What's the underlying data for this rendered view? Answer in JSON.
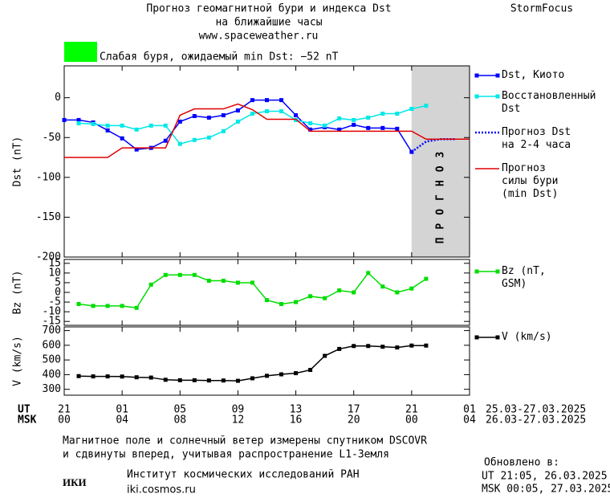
{
  "header": {
    "title_lines": [
      "Прогноз геомагнитной бури и индекса Dst",
      "на ближайшие часы"
    ],
    "url": "www.spaceweather.ru",
    "brand": "StormFocus"
  },
  "status": {
    "color": "#00ff00",
    "text": "Слабая буря, ожидаемый min Dst: −52 nT"
  },
  "shared_x": {
    "xlim": [
      0,
      28
    ],
    "xticks": [
      {
        "value": 0,
        "label": "21"
      },
      {
        "value": 4,
        "label": "01"
      },
      {
        "value": 8,
        "label": "05"
      },
      {
        "value": 12,
        "label": "09"
      },
      {
        "value": 16,
        "label": "13"
      },
      {
        "value": 20,
        "label": "17"
      },
      {
        "value": 24,
        "label": "21"
      },
      {
        "value": 28,
        "label": "01"
      }
    ],
    "msk_ticks": [
      {
        "value": 0,
        "label": "00"
      },
      {
        "value": 4,
        "label": "04"
      },
      {
        "value": 8,
        "label": "08"
      },
      {
        "value": 12,
        "label": "12"
      },
      {
        "value": 16,
        "label": "16"
      },
      {
        "value": 20,
        "label": "20"
      },
      {
        "value": 24,
        "label": "00"
      },
      {
        "value": 28,
        "label": "04"
      }
    ],
    "ut_label": "UT",
    "msk_label": "MSK",
    "ut_dates": "25.03-27.03.2025",
    "msk_dates": "26.03-27.03.2025"
  },
  "chart_data": [
    {
      "type": "line",
      "y_label": "Dst (nT)",
      "ylim": [
        -200,
        40
      ],
      "yticks": [
        0,
        -50,
        -100,
        -150,
        -200
      ],
      "forecast_region": [
        24,
        28
      ],
      "forecast_label": "ПРОГНОЗ",
      "series": [
        {
          "name": "Dst, Киото",
          "color": "#0000ff",
          "marker": "square",
          "style": "solid",
          "x": [
            0,
            1,
            2,
            3,
            4,
            5,
            6,
            7,
            8,
            9,
            10,
            11,
            12,
            13,
            14,
            15,
            16,
            17,
            18,
            19,
            20,
            21,
            22,
            23,
            24
          ],
          "values": [
            -28,
            -28,
            -31,
            -41,
            -51,
            -65,
            -63,
            -54,
            -30,
            -23,
            -25,
            -22,
            -16,
            -3,
            -3,
            -3,
            -22,
            -40,
            -37,
            -40,
            -34,
            -38,
            -38,
            -39,
            -68
          ]
        },
        {
          "name": "Восстановленный Dst",
          "color": "#00e8e8",
          "marker": "square",
          "style": "solid",
          "x": [
            1,
            2,
            3,
            4,
            5,
            6,
            7,
            8,
            9,
            10,
            11,
            12,
            13,
            14,
            15,
            16,
            17,
            18,
            19,
            20,
            21,
            22,
            23,
            24,
            25
          ],
          "values": [
            -32,
            -33,
            -35,
            -35,
            -40,
            -35,
            -35,
            -58,
            -53,
            -50,
            -42,
            -30,
            -20,
            -17,
            -17,
            -28,
            -32,
            -35,
            -26,
            -28,
            -25,
            -20,
            -20,
            -14,
            -10
          ]
        },
        {
          "name": "Прогноз Dst на 2-4 часа",
          "color": "#0000ff",
          "marker": null,
          "style": "dotted",
          "x": [
            24,
            25,
            26,
            27
          ],
          "values": [
            -68,
            -55,
            -52,
            -52
          ]
        },
        {
          "name": "Прогноз силы бури (min Dst)",
          "color": "#e00000",
          "marker": null,
          "style": "solid",
          "x": [
            0,
            3,
            4,
            7,
            8,
            9,
            11,
            12,
            13,
            14,
            16,
            17,
            24,
            25,
            28
          ],
          "values": [
            -75,
            -75,
            -63,
            -63,
            -22,
            -14,
            -14,
            -8,
            -15,
            -27,
            -27,
            -42,
            -42,
            -52,
            -52
          ]
        }
      ]
    },
    {
      "type": "line",
      "y_label": "Bz (nT)",
      "ylim": [
        -17,
        17
      ],
      "yticks": [
        15,
        10,
        5,
        0,
        -5,
        -10,
        -15
      ],
      "series": [
        {
          "name": "Bz (nT, GSM)",
          "color": "#00dd00",
          "marker": "square",
          "style": "solid",
          "x": [
            1,
            2,
            3,
            4,
            5,
            6,
            7,
            8,
            9,
            10,
            11,
            12,
            13,
            14,
            15,
            16,
            17,
            18,
            19,
            20,
            21,
            22,
            23,
            24,
            25
          ],
          "values": [
            -6,
            -7,
            -7,
            -7,
            -8,
            4,
            9,
            9,
            9,
            6,
            6,
            5,
            5,
            -4,
            -6,
            -5,
            -2,
            -3,
            1,
            0,
            10,
            3,
            0,
            2,
            7
          ]
        }
      ]
    },
    {
      "type": "line",
      "y_label": "V (km/s)",
      "ylim": [
        260,
        725
      ],
      "yticks": [
        700,
        600,
        500,
        400,
        300
      ],
      "series": [
        {
          "name": "V (km/s)",
          "color": "#000000",
          "marker": "square",
          "style": "solid",
          "x": [
            1,
            2,
            3,
            4,
            5,
            6,
            7,
            8,
            9,
            10,
            11,
            12,
            13,
            14,
            15,
            16,
            17,
            18,
            19,
            20,
            21,
            22,
            23,
            24,
            25
          ],
          "values": [
            390,
            388,
            388,
            387,
            382,
            380,
            365,
            362,
            362,
            360,
            360,
            358,
            375,
            392,
            402,
            410,
            432,
            528,
            575,
            595,
            595,
            590,
            585,
            598,
            598
          ]
        }
      ]
    }
  ],
  "footer": {
    "lines": [
      "Магнитное поле и солнечный ветер измерены спутником DSCOVR",
      "и сдвинуты вперед, учитывая распространение L1-Земля"
    ],
    "logo": "ИКИ",
    "institute": "Институт космических исследований РАН",
    "site": "iki.cosmos.ru",
    "updated_label": "Обновлено в:",
    "updated_ut": "UT  21:05, 26.03.2025",
    "updated_msk": "MSK 00:05, 27.03.2025"
  }
}
